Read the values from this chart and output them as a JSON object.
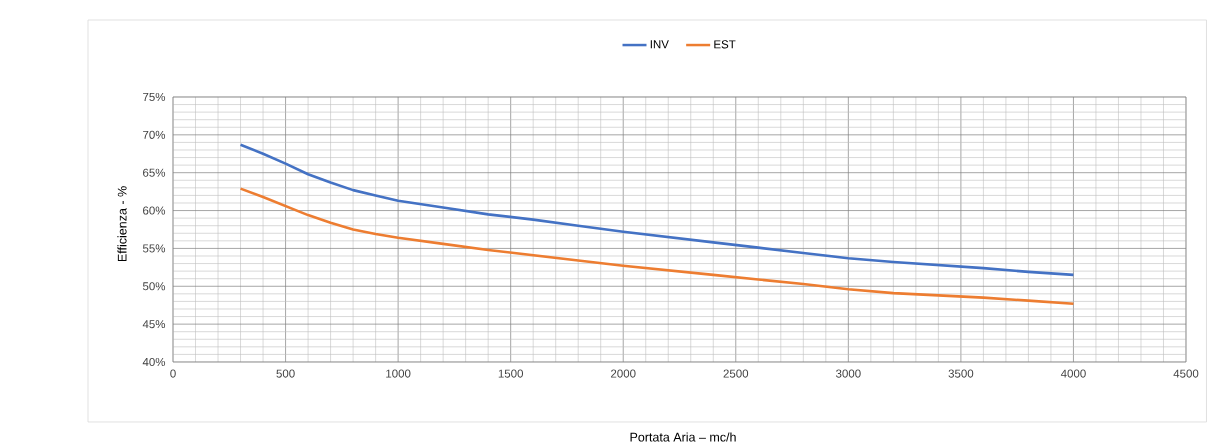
{
  "chart_data": {
    "type": "line",
    "xlabel": "Portata Aria – mc/h",
    "ylabel": "Efficienza - %",
    "x": [
      300,
      400,
      500,
      600,
      700,
      800,
      900,
      1000,
      1200,
      1400,
      1600,
      1800,
      2000,
      2200,
      2400,
      2600,
      2800,
      3000,
      3200,
      3400,
      3600,
      3800,
      4000
    ],
    "series": [
      {
        "name": "INV",
        "color": "#4472c4",
        "values": [
          68.7,
          67.5,
          66.2,
          64.8,
          63.7,
          62.7,
          62.0,
          61.3,
          60.4,
          59.5,
          58.8,
          58.0,
          57.2,
          56.5,
          55.8,
          55.1,
          54.4,
          53.7,
          53.2,
          52.8,
          52.4,
          51.9,
          51.5
        ]
      },
      {
        "name": "EST",
        "color": "#ed7d31",
        "values": [
          62.9,
          61.8,
          60.6,
          59.4,
          58.4,
          57.5,
          56.9,
          56.4,
          55.6,
          54.8,
          54.1,
          53.4,
          52.7,
          52.1,
          51.5,
          50.9,
          50.3,
          49.6,
          49.1,
          48.8,
          48.5,
          48.1,
          47.7
        ]
      }
    ],
    "xlim": [
      0,
      4500
    ],
    "xticks": [
      0,
      500,
      1000,
      1500,
      2000,
      2500,
      3000,
      3500,
      4000,
      4500
    ],
    "ylim": [
      40,
      75
    ],
    "yticks": [
      {
        "value": 40,
        "label": "40%"
      },
      {
        "value": 45,
        "label": "45%"
      },
      {
        "value": 50,
        "label": "50%"
      },
      {
        "value": 55,
        "label": "55%"
      },
      {
        "value": 60,
        "label": "60%"
      },
      {
        "value": 65,
        "label": "65%"
      },
      {
        "value": 70,
        "label": "70%"
      },
      {
        "value": 75,
        "label": "75%"
      }
    ],
    "grid": true,
    "legend": "top",
    "marker": "none",
    "line_style": "solid"
  }
}
